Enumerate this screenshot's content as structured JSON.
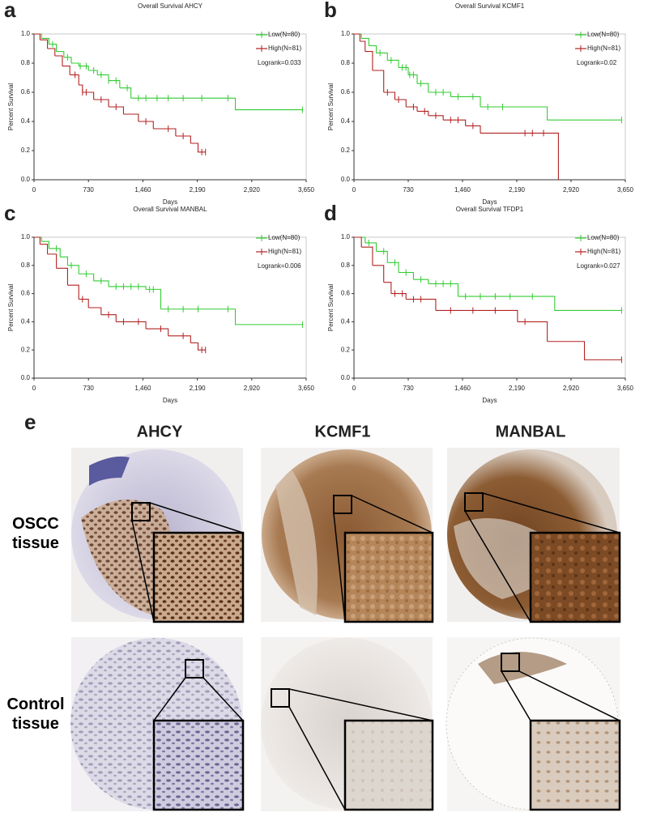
{
  "chart_data": [
    {
      "type": "km",
      "panel_label": "a",
      "title": "Overall Survival AHCY",
      "x_label": "Days",
      "y_label": "Percent Survival",
      "annotation": "Logrank=0.033",
      "legend": "upper right",
      "xlim": [
        0,
        3650
      ],
      "ylim": [
        0,
        1
      ],
      "xticks": [
        0,
        730,
        {
          "value": 1460,
          "label": "1,460"
        },
        {
          "value": 2190,
          "label": "2,190"
        },
        {
          "value": 2920,
          "label": "2,920"
        },
        {
          "value": 3650,
          "label": "3,650"
        }
      ],
      "yticks": [
        {
          "value": 0,
          "label": "0.0"
        },
        0.2,
        0.4,
        0.6,
        0.8,
        {
          "value": 1,
          "label": "1.0"
        }
      ],
      "series": [
        {
          "name": "Low(N=80)",
          "color": "#33cc33",
          "x": [
            0,
            100,
            200,
            300,
            400,
            500,
            600,
            730,
            850,
            1000,
            1150,
            1300,
            2700
          ],
          "values": [
            1.0,
            0.97,
            0.93,
            0.88,
            0.84,
            0.8,
            0.78,
            0.75,
            0.72,
            0.68,
            0.63,
            0.56,
            0.48
          ],
          "censored": [
            250,
            450,
            620,
            700,
            800,
            900,
            1000,
            1100,
            1250,
            1400,
            1500,
            1650,
            1800,
            2000,
            2250,
            2600,
            3600
          ]
        },
        {
          "name": "High(N=81)",
          "color": "#b22222",
          "x": [
            0,
            80,
            180,
            280,
            380,
            480,
            600,
            650,
            800,
            1000,
            1200,
            1400,
            1600,
            1900,
            2100,
            2200
          ],
          "values": [
            1.0,
            0.96,
            0.9,
            0.85,
            0.78,
            0.72,
            0.65,
            0.6,
            0.55,
            0.5,
            0.45,
            0.4,
            0.35,
            0.3,
            0.25,
            0.19
          ],
          "censored": [
            550,
            650,
            700,
            900,
            1100,
            1500,
            1800,
            2000,
            2250,
            2300
          ]
        }
      ]
    },
    {
      "type": "km",
      "panel_label": "b",
      "title": "Overall Survival KCMF1",
      "x_label": "Days",
      "y_label": "Percent Survival",
      "annotation": "Logrank=0.02",
      "legend": "upper right",
      "xlim": [
        0,
        3650
      ],
      "ylim": [
        0,
        1
      ],
      "xticks": [
        0,
        730,
        {
          "value": 1460,
          "label": "1,460"
        },
        {
          "value": 2190,
          "label": "2,190"
        },
        {
          "value": 2920,
          "label": "2,920"
        },
        {
          "value": 3650,
          "label": "3,650"
        }
      ],
      "yticks": [
        {
          "value": 0,
          "label": "0.0"
        },
        0.2,
        0.4,
        0.6,
        0.8,
        {
          "value": 1,
          "label": "1.0"
        }
      ],
      "series": [
        {
          "name": "Low(N=80)",
          "color": "#33cc33",
          "x": [
            0,
            100,
            200,
            300,
            450,
            600,
            730,
            850,
            1000,
            1300,
            1700,
            2600
          ],
          "values": [
            1.0,
            0.97,
            0.92,
            0.87,
            0.82,
            0.77,
            0.72,
            0.66,
            0.6,
            0.57,
            0.5,
            0.41
          ],
          "censored": [
            350,
            500,
            650,
            700,
            750,
            800,
            900,
            1100,
            1200,
            1400,
            1600,
            1800,
            2000,
            3600
          ]
        },
        {
          "name": "High(N=81)",
          "color": "#b22222",
          "x": [
            0,
            80,
            150,
            250,
            400,
            550,
            700,
            850,
            1000,
            1200,
            1500,
            1700,
            2750
          ],
          "values": [
            1.0,
            0.95,
            0.88,
            0.75,
            0.6,
            0.55,
            0.5,
            0.47,
            0.44,
            0.41,
            0.37,
            0.32,
            0.0
          ],
          "censored": [
            450,
            600,
            800,
            950,
            1100,
            1300,
            1400,
            1600,
            2300,
            2400,
            2550
          ]
        }
      ]
    },
    {
      "type": "km",
      "panel_label": "c",
      "title": "Overall Survival MANBAL",
      "x_label": "Days",
      "y_label": "Percent Survival",
      "annotation": "Logrank=0.006",
      "legend": "upper right",
      "xlim": [
        0,
        3650
      ],
      "ylim": [
        0,
        1
      ],
      "xticks": [
        0,
        730,
        {
          "value": 1460,
          "label": "1,460"
        },
        {
          "value": 2190,
          "label": "2,190"
        },
        {
          "value": 2920,
          "label": "2,920"
        },
        {
          "value": 3650,
          "label": "3,650"
        }
      ],
      "yticks": [
        {
          "value": 0,
          "label": "0.0"
        },
        0.2,
        0.4,
        0.6,
        0.8,
        {
          "value": 1,
          "label": "1.0"
        }
      ],
      "series": [
        {
          "name": "Low(N=80)",
          "color": "#33cc33",
          "x": [
            0,
            100,
            200,
            350,
            450,
            600,
            800,
            1000,
            1500,
            1700,
            2700
          ],
          "values": [
            1.0,
            0.97,
            0.92,
            0.86,
            0.8,
            0.74,
            0.69,
            0.65,
            0.63,
            0.49,
            0.38
          ],
          "censored": [
            300,
            500,
            700,
            900,
            1100,
            1200,
            1300,
            1400,
            1550,
            1600,
            1800,
            2000,
            2200,
            2600,
            3600
          ]
        },
        {
          "name": "High(N=81)",
          "color": "#b22222",
          "x": [
            0,
            80,
            180,
            300,
            450,
            600,
            730,
            900,
            1100,
            1500,
            1800,
            2100,
            2200
          ],
          "values": [
            1.0,
            0.95,
            0.88,
            0.78,
            0.66,
            0.56,
            0.5,
            0.45,
            0.4,
            0.35,
            0.3,
            0.25,
            0.2
          ],
          "censored": [
            650,
            1000,
            1200,
            1400,
            1700,
            2000,
            2250,
            2300
          ]
        }
      ]
    },
    {
      "type": "km",
      "panel_label": "d",
      "title": "Overall Survival TFDP1",
      "x_label": "Days",
      "y_label": "Percent Survival",
      "annotation": "Logrank=0.027",
      "legend": "upper right",
      "xlim": [
        0,
        3650
      ],
      "ylim": [
        0,
        1
      ],
      "xticks": [
        0,
        730,
        {
          "value": 1460,
          "label": "1,460"
        },
        {
          "value": 2190,
          "label": "2,190"
        },
        {
          "value": 2920,
          "label": "2,920"
        },
        {
          "value": 3650,
          "label": "3,650"
        }
      ],
      "yticks": [
        {
          "value": 0,
          "label": "0.0"
        },
        0.2,
        0.4,
        0.6,
        0.8,
        {
          "value": 1,
          "label": "1.0"
        }
      ],
      "series": [
        {
          "name": "Low(N=80)",
          "color": "#33cc33",
          "x": [
            0,
            150,
            300,
            450,
            600,
            800,
            1000,
            1400,
            2700
          ],
          "values": [
            1.0,
            0.96,
            0.9,
            0.82,
            0.75,
            0.7,
            0.67,
            0.58,
            0.48
          ],
          "censored": [
            200,
            400,
            550,
            700,
            900,
            1100,
            1200,
            1300,
            1500,
            1700,
            1900,
            2100,
            2400,
            3600
          ]
        },
        {
          "name": "High(N=81)",
          "color": "#b22222",
          "x": [
            0,
            100,
            250,
            400,
            500,
            700,
            1100,
            2200,
            2600,
            3100
          ],
          "values": [
            1.0,
            0.93,
            0.8,
            0.68,
            0.6,
            0.56,
            0.48,
            0.4,
            0.26,
            0.13
          ],
          "censored": [
            550,
            650,
            800,
            900,
            1300,
            1600,
            1900,
            2300,
            3600
          ]
        }
      ]
    }
  ],
  "panel_e": {
    "label": "e",
    "columns": [
      "AHCY",
      "KCMF1",
      "MANBAL"
    ],
    "rows": [
      "OSCC tissue",
      "Control tissue"
    ]
  }
}
